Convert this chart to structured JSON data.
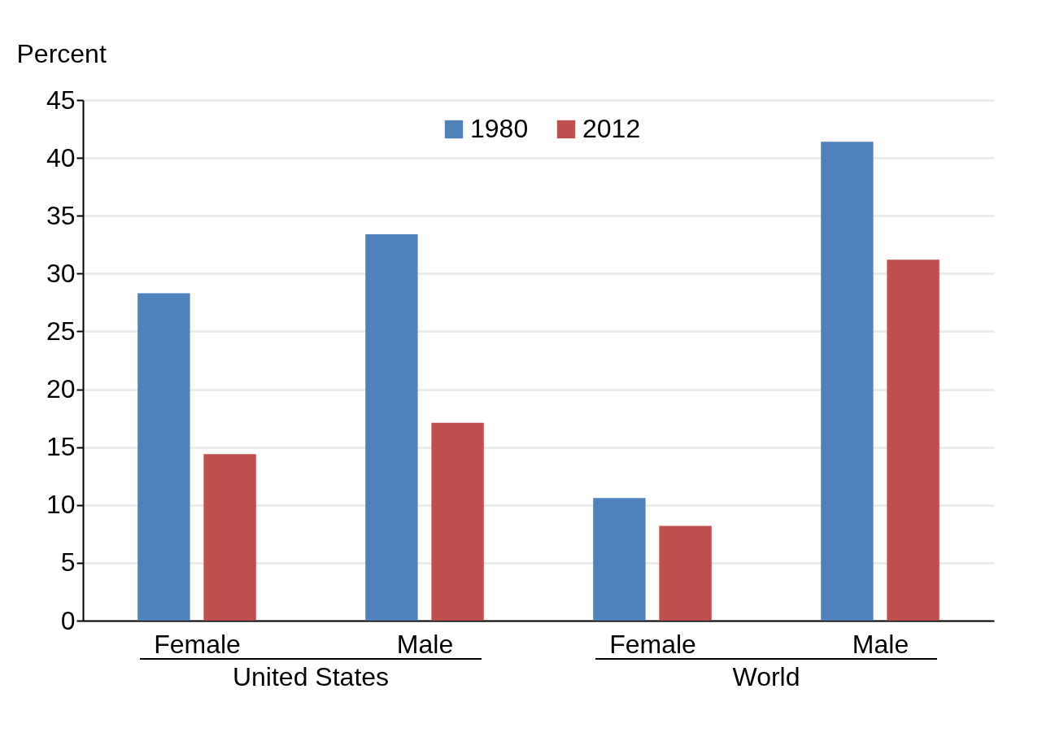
{
  "chart_data": {
    "type": "bar",
    "ylabel": "Percent",
    "categories": [
      "Female",
      "Male",
      "Female",
      "Male"
    ],
    "series": [
      {
        "name": "1980",
        "color": "#4f81bd",
        "values": [
          28.3,
          33.4,
          10.6,
          41.4
        ]
      },
      {
        "name": "2012",
        "color": "#c0504d",
        "values": [
          14.4,
          17.1,
          8.2,
          31.2
        ]
      }
    ],
    "ylim": [
      0,
      45
    ],
    "yticks": [
      0,
      5,
      10,
      15,
      20,
      25,
      30,
      35,
      40,
      45
    ],
    "grid": "y",
    "legend": "top",
    "annotations": [
      "United States",
      "World"
    ]
  }
}
